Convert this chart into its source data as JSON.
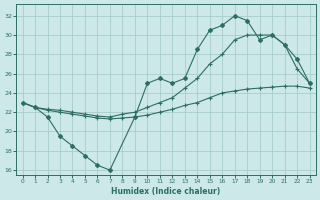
{
  "xlabel": "Humidex (Indice chaleur)",
  "background_color": "#cce8e8",
  "grid_color": "#a8cccc",
  "line_color": "#2d6e63",
  "xlim": [
    -0.5,
    23.5
  ],
  "ylim": [
    15.5,
    33.2
  ],
  "xticks": [
    0,
    1,
    2,
    3,
    4,
    5,
    6,
    7,
    8,
    9,
    10,
    11,
    12,
    13,
    14,
    15,
    16,
    17,
    18,
    19,
    20,
    21,
    22,
    23
  ],
  "yticks": [
    16,
    18,
    20,
    22,
    24,
    26,
    28,
    30,
    32
  ],
  "curve1_x": [
    0,
    1,
    2,
    3,
    4,
    5,
    6,
    7,
    9,
    10,
    11,
    12,
    13,
    14,
    15,
    16,
    17,
    18,
    19,
    20,
    21,
    22,
    23
  ],
  "curve1_y": [
    23.0,
    22.5,
    21.5,
    19.5,
    18.5,
    17.5,
    16.5,
    16.0,
    21.5,
    25.0,
    25.5,
    25.0,
    25.5,
    28.5,
    30.5,
    31.0,
    32.0,
    31.5,
    29.5,
    30.0,
    29.0,
    27.5,
    25.0
  ],
  "curve2_x": [
    0,
    1,
    2,
    3,
    4,
    5,
    6,
    7,
    8,
    9,
    10,
    11,
    12,
    13,
    14,
    15,
    16,
    17,
    18,
    19,
    20,
    21,
    22,
    23
  ],
  "curve2_y": [
    23.0,
    22.5,
    22.2,
    22.0,
    21.8,
    21.6,
    21.4,
    21.3,
    21.4,
    21.5,
    21.7,
    22.0,
    22.3,
    22.7,
    23.0,
    23.5,
    24.0,
    24.2,
    24.4,
    24.5,
    24.6,
    24.7,
    24.7,
    24.5
  ],
  "curve3_x": [
    0,
    1,
    2,
    3,
    4,
    5,
    6,
    7,
    8,
    9,
    10,
    11,
    12,
    13,
    14,
    15,
    16,
    17,
    18,
    19,
    20,
    21,
    22,
    23
  ],
  "curve3_y": [
    23.0,
    22.5,
    22.3,
    22.2,
    22.0,
    21.8,
    21.6,
    21.5,
    21.8,
    22.0,
    22.5,
    23.0,
    23.5,
    24.5,
    25.5,
    27.0,
    28.0,
    29.5,
    30.0,
    30.0,
    30.0,
    29.0,
    26.5,
    25.0
  ]
}
